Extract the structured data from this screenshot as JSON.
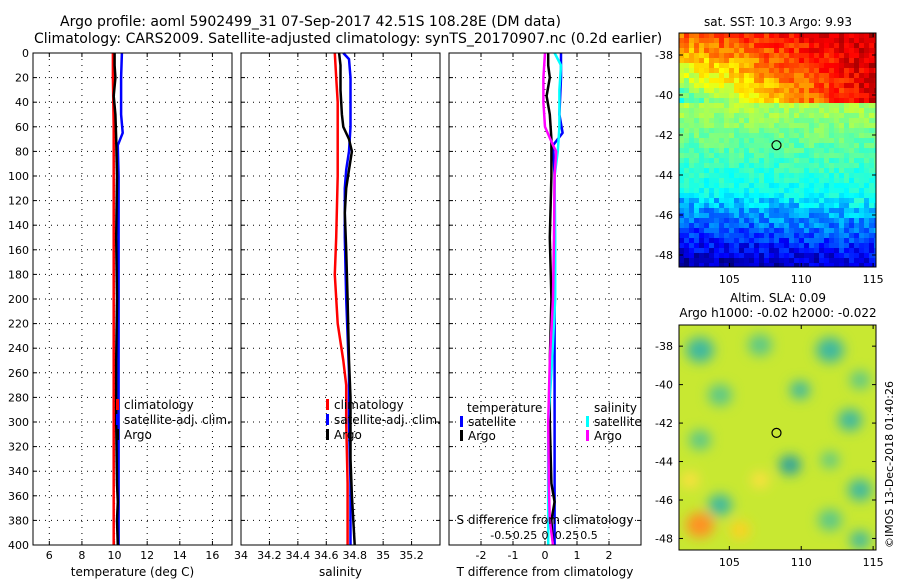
{
  "title": {
    "line1": "Argo profile: aoml 5902499_31 07-Sep-2017 42.51S 108.28E (DM data)",
    "line2": "Climatology: CARS2009. Satellite-adjusted climatology: synTS_20170907.nc (0.2d earlier)"
  },
  "credit": "©IMOS 13-Dec-2018 01:40:26",
  "colors": {
    "climatology": "#ff0000",
    "satellite": "#0000ff",
    "argo": "#000000",
    "sal_satellite": "#00ffff",
    "sal_argo": "#ff00ff",
    "marker": "#000000"
  },
  "chart_data": [
    {
      "id": "temperature",
      "type": "line",
      "xlabel": "temperature (deg C)",
      "ylabel": "",
      "xlim": [
        5,
        17.2
      ],
      "xticks": [
        6,
        8,
        10,
        12,
        14,
        16
      ],
      "ylim": [
        400,
        0
      ],
      "yticks": [
        0,
        20,
        40,
        60,
        80,
        100,
        120,
        140,
        160,
        180,
        200,
        220,
        240,
        260,
        280,
        300,
        320,
        340,
        360,
        380,
        400
      ],
      "legend": {
        "position": "right-middle",
        "labels": [
          "climatology",
          "satellite-adj. clim.",
          "Argo"
        ]
      },
      "series": [
        {
          "name": "climatology",
          "color": "climatology",
          "points": [
            [
              9.9,
              0
            ],
            [
              9.9,
              20
            ],
            [
              9.95,
              60
            ],
            [
              9.95,
              100
            ],
            [
              9.95,
              200
            ],
            [
              9.95,
              300
            ],
            [
              9.95,
              400
            ]
          ]
        },
        {
          "name": "satellite-adj. clim.",
          "color": "satellite",
          "points": [
            [
              10.45,
              0
            ],
            [
              10.4,
              20
            ],
            [
              10.4,
              50
            ],
            [
              10.5,
              65
            ],
            [
              10.2,
              75
            ],
            [
              10.25,
              100
            ],
            [
              10.25,
              200
            ],
            [
              10.25,
              300
            ],
            [
              10.25,
              400
            ]
          ]
        },
        {
          "name": "Argo",
          "color": "argo",
          "points": [
            [
              10.0,
              0
            ],
            [
              10.0,
              10
            ],
            [
              10.05,
              20
            ],
            [
              9.95,
              35
            ],
            [
              10.05,
              50
            ],
            [
              10.1,
              70
            ],
            [
              10.15,
              100
            ],
            [
              10.1,
              150
            ],
            [
              10.15,
              200
            ],
            [
              10.1,
              250
            ],
            [
              10.1,
              300
            ],
            [
              10.15,
              350
            ],
            [
              10.2,
              365
            ],
            [
              10.15,
              380
            ],
            [
              10.2,
              400
            ]
          ]
        }
      ]
    },
    {
      "id": "salinity",
      "type": "line",
      "xlabel": "salinity",
      "xlim": [
        34.0,
        35.4
      ],
      "xticks": [
        34,
        34.2,
        34.4,
        34.6,
        34.8,
        35,
        35.2
      ],
      "xticklabels": [
        "34",
        "34.2",
        "34.4",
        "34.6",
        "34.8",
        "35",
        "35.2"
      ],
      "ylim": [
        400,
        0
      ],
      "legend": {
        "position": "right-middle",
        "labels": [
          "climatology",
          "satellite-adj. clim.",
          "Argo"
        ]
      },
      "series": [
        {
          "name": "climatology",
          "color": "climatology",
          "points": [
            [
              34.66,
              0
            ],
            [
              34.67,
              20
            ],
            [
              34.68,
              40
            ],
            [
              34.68,
              100
            ],
            [
              34.67,
              150
            ],
            [
              34.66,
              180
            ],
            [
              34.68,
              220
            ],
            [
              34.72,
              250
            ],
            [
              34.74,
              270
            ],
            [
              34.74,
              300
            ],
            [
              34.75,
              350
            ],
            [
              34.75,
              400
            ]
          ]
        },
        {
          "name": "satellite-adj. clim.",
          "color": "satellite",
          "points": [
            [
              34.72,
              0
            ],
            [
              34.76,
              5
            ],
            [
              34.77,
              20
            ],
            [
              34.77,
              60
            ],
            [
              34.76,
              80
            ],
            [
              34.74,
              95
            ],
            [
              34.73,
              110
            ],
            [
              34.73,
              150
            ],
            [
              34.74,
              200
            ],
            [
              34.76,
              260
            ],
            [
              34.76,
              300
            ],
            [
              34.77,
              350
            ],
            [
              34.77,
              400
            ]
          ]
        },
        {
          "name": "Argo",
          "color": "argo",
          "points": [
            [
              34.69,
              0
            ],
            [
              34.7,
              10
            ],
            [
              34.7,
              30
            ],
            [
              34.71,
              50
            ],
            [
              34.72,
              60
            ],
            [
              34.76,
              70
            ],
            [
              34.78,
              80
            ],
            [
              34.76,
              95
            ],
            [
              34.74,
              110
            ],
            [
              34.73,
              130
            ],
            [
              34.74,
              160
            ],
            [
              34.75,
              200
            ],
            [
              34.76,
              250
            ],
            [
              34.77,
              280
            ],
            [
              34.77,
              330
            ],
            [
              34.78,
              360
            ],
            [
              34.79,
              380
            ],
            [
              34.8,
              400
            ]
          ]
        }
      ]
    },
    {
      "id": "difference",
      "type": "line",
      "xlabel": "T difference from climatology",
      "xlabel2": "S difference from climatology",
      "xlim": [
        -3.0,
        3.0
      ],
      "xticks": [
        -2,
        -1,
        0,
        1,
        2
      ],
      "xticks2": [
        -0.5,
        -0.25,
        0,
        0.25,
        0.5
      ],
      "xticklabels2": [
        "-0.5",
        "-0.25",
        "0",
        "0.25",
        "0.5"
      ],
      "s_scale": 0.2,
      "ylim": [
        400,
        0
      ],
      "legend": {
        "position": "right-middle",
        "temperature_header": "temperature",
        "salinity_header": "salinity",
        "labels": [
          "satellite",
          "Argo",
          "satellite",
          "Argo"
        ]
      },
      "series": [
        {
          "name": "temperature satellite",
          "color": "satellite",
          "points": [
            [
              0.5,
              0
            ],
            [
              0.5,
              20
            ],
            [
              0.45,
              50
            ],
            [
              0.55,
              65
            ],
            [
              0.25,
              75
            ],
            [
              0.3,
              100
            ],
            [
              0.3,
              200
            ],
            [
              0.3,
              300
            ],
            [
              0.3,
              400
            ]
          ]
        },
        {
          "name": "temperature Argo",
          "color": "argo",
          "points": [
            [
              0.1,
              0
            ],
            [
              0.1,
              10
            ],
            [
              0.15,
              20
            ],
            [
              0.05,
              35
            ],
            [
              0.15,
              50
            ],
            [
              0.2,
              70
            ],
            [
              0.2,
              100
            ],
            [
              0.15,
              150
            ],
            [
              0.2,
              200
            ],
            [
              0.15,
              250
            ],
            [
              0.15,
              300
            ],
            [
              0.2,
              350
            ],
            [
              0.3,
              365
            ],
            [
              0.2,
              380
            ],
            [
              0.25,
              400
            ]
          ]
        },
        {
          "name": "salinity satellite",
          "color": "sal_satellite",
          "points": [
            [
              0.3,
              0
            ],
            [
              0.5,
              10
            ],
            [
              0.45,
              30
            ],
            [
              0.45,
              60
            ],
            [
              0.4,
              80
            ],
            [
              0.3,
              100
            ],
            [
              0.32,
              150
            ],
            [
              0.32,
              200
            ],
            [
              0.2,
              260
            ],
            [
              0.1,
              300
            ],
            [
              0.1,
              350
            ],
            [
              0.1,
              400
            ]
          ]
        },
        {
          "name": "salinity Argo",
          "color": "sal_argo",
          "points": [
            [
              0.0,
              0
            ],
            [
              -0.05,
              20
            ],
            [
              -0.05,
              40
            ],
            [
              0.0,
              60
            ],
            [
              0.25,
              75
            ],
            [
              0.35,
              80
            ],
            [
              0.3,
              100
            ],
            [
              0.28,
              150
            ],
            [
              0.25,
              200
            ],
            [
              0.15,
              250
            ],
            [
              0.1,
              300
            ],
            [
              0.12,
              350
            ],
            [
              0.15,
              380
            ],
            [
              0.25,
              400
            ]
          ]
        }
      ]
    },
    {
      "id": "sst_map",
      "type": "heatmap",
      "title": "sat. SST: 10.3 Argo: 9.93",
      "xlim": [
        101.5,
        115.2
      ],
      "xticks": [
        105,
        110,
        115
      ],
      "ylim": [
        -48.6,
        -36.9
      ],
      "yticks": [
        -38,
        -40,
        -42,
        -44,
        -46,
        -48
      ],
      "marker": {
        "lon": 108.28,
        "lat": -42.51
      }
    },
    {
      "id": "sla_map",
      "type": "heatmap",
      "title": "Altim. SLA: 0.09",
      "subtitle": "Argo h1000: -0.02 h2000: -0.022",
      "xlim": [
        101.5,
        115.2
      ],
      "xticks": [
        105,
        110,
        115
      ],
      "ylim": [
        -48.6,
        -36.9
      ],
      "yticks": [
        -38,
        -40,
        -42,
        -44,
        -46,
        -48
      ],
      "marker": {
        "lon": 108.28,
        "lat": -42.51
      }
    }
  ]
}
